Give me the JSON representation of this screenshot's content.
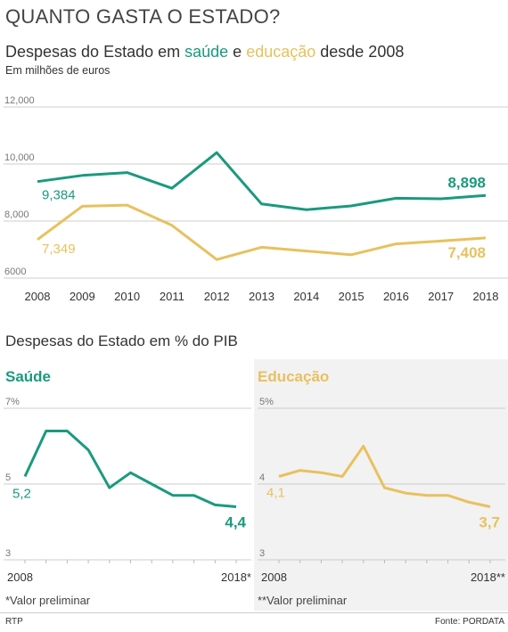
{
  "header": {
    "title": "QUANTO GASTA O ESTADO?",
    "chart1_title_parts": [
      "Despesas do Estado em ",
      "saúde",
      " e ",
      "educação",
      " desde 2008"
    ],
    "chart1_subtitle": "Em milhões de euros",
    "chart2_title": "Despesas do Estado em % do PIB"
  },
  "colors": {
    "saude": "#1a9a7e",
    "educacao": "#e8c15e",
    "grid": "#cccccc",
    "axis_text": "#777777"
  },
  "footer": {
    "left": "RTP",
    "right": "Fonte: PORDATA"
  },
  "chart_data": [
    {
      "type": "line",
      "title": "Despesas do Estado em saúde e educação desde 2008",
      "subtitle": "Em milhões de euros",
      "x": [
        "2008",
        "2009",
        "2010",
        "2011",
        "2012",
        "2013",
        "2014",
        "2015",
        "2016",
        "2017",
        "2018"
      ],
      "ylim": [
        6000,
        12000
      ],
      "yticks": [
        "6000",
        "8,000",
        "10,000",
        "12,000"
      ],
      "grid": true,
      "series": [
        {
          "name": "saúde",
          "color": "#1a9a7e",
          "values": [
            9384,
            9600,
            9700,
            9150,
            10400,
            8600,
            8400,
            8530,
            8800,
            8780,
            8898
          ],
          "start_label": "9,384",
          "end_label": "8,898"
        },
        {
          "name": "educação",
          "color": "#e8c15e",
          "values": [
            7349,
            8520,
            8560,
            7850,
            6650,
            7080,
            6950,
            6820,
            7200,
            7300,
            7408
          ],
          "start_label": "7,349",
          "end_label": "7,408"
        }
      ]
    },
    {
      "type": "line",
      "title": "Saúde",
      "x_start_label": "2008",
      "x_end_label": "2018*",
      "ylim": [
        3,
        7
      ],
      "yticks": [
        "3",
        "5",
        "7%"
      ],
      "grid": true,
      "series": [
        {
          "color": "#1a9a7e",
          "values": [
            5.2,
            6.4,
            6.4,
            5.9,
            4.9,
            5.3,
            5.0,
            4.7,
            4.7,
            4.45,
            4.4
          ],
          "start_label": "5,2",
          "end_label": "4,4"
        }
      ],
      "footnote": "*Valor preliminar"
    },
    {
      "type": "line",
      "title": "Educação",
      "x_start_label": "2008",
      "x_end_label": "2018**",
      "ylim": [
        3,
        5
      ],
      "yticks": [
        "3",
        "4",
        "5%"
      ],
      "grid": true,
      "series": [
        {
          "color": "#e8c15e",
          "values": [
            4.1,
            4.18,
            4.15,
            4.1,
            4.5,
            3.95,
            3.88,
            3.85,
            3.85,
            3.76,
            3.7
          ],
          "start_label": "4,1",
          "end_label": "3,7"
        }
      ],
      "footnote": "**Valor preliminar"
    }
  ]
}
